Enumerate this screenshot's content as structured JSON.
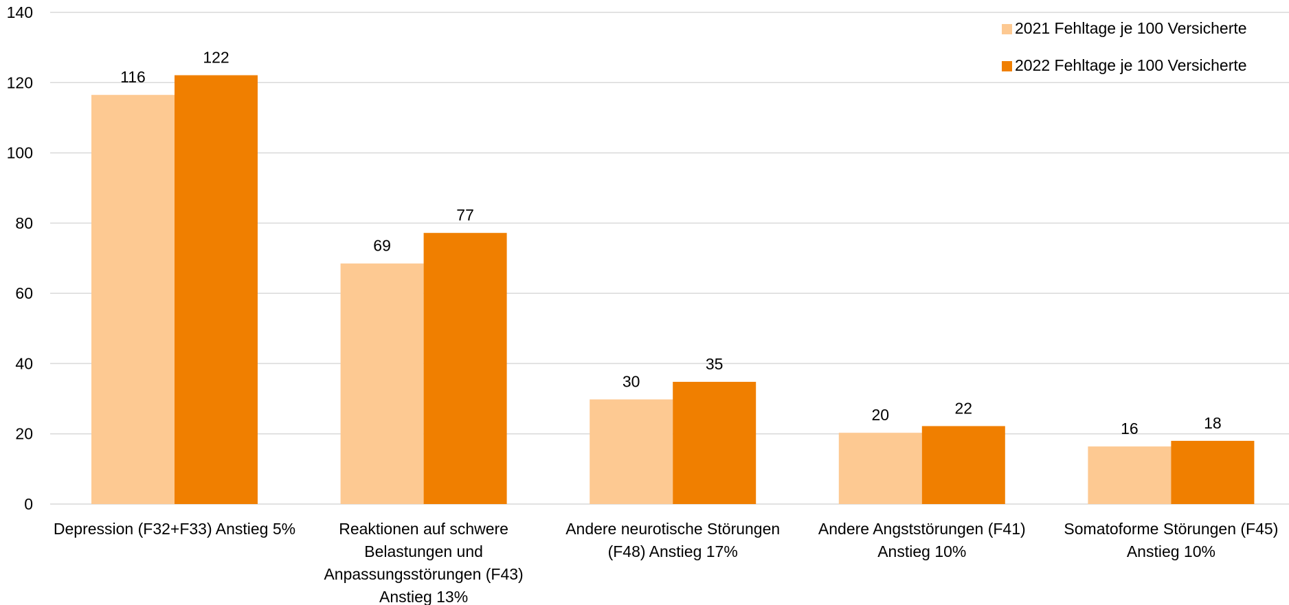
{
  "chart_data": {
    "type": "bar",
    "title": "",
    "xlabel": "",
    "ylabel": "",
    "ylim": [
      0,
      140
    ],
    "y_ticks": [
      0,
      20,
      40,
      60,
      80,
      100,
      120,
      140
    ],
    "grid": true,
    "legend_position": "top-right",
    "categories": [
      [
        "Depression (F32+F33) Anstieg 5%"
      ],
      [
        "Reaktionen auf schwere",
        "Belastungen und",
        "Anpassungsstörungen (F43)",
        "Anstieg 13%"
      ],
      [
        "Andere neurotische Störungen",
        "(F48) Anstieg 17%"
      ],
      [
        "Andere Angststörungen (F41)",
        "Anstieg 10%"
      ],
      [
        "Somatoforme Störungen (F45)",
        "Anstieg 10%"
      ]
    ],
    "series": [
      {
        "name": "2021 Fehltage je 100 Versicherte",
        "color": "#fdc992",
        "values": [
          116.5,
          68.5,
          29.8,
          20.3,
          16.4
        ],
        "labels": [
          "116",
          "69",
          "30",
          "20",
          "16"
        ]
      },
      {
        "name": "2022 Fehltage je 100 Versicherte",
        "color": "#f07f00",
        "values": [
          122.1,
          77.2,
          34.8,
          22.2,
          18.0
        ],
        "labels": [
          "122",
          "77",
          "35",
          "22",
          "18"
        ]
      }
    ]
  }
}
